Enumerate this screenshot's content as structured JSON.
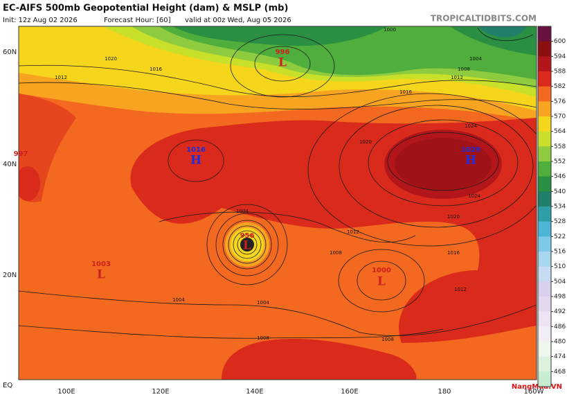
{
  "header": {
    "title": "EC-AIFS 500mb Geopotential Height (dam) & MSLP (mb)",
    "init": "Init: 12z Aug 02 2026",
    "forecast_hour": "Forecast Hour: [60]",
    "valid": "valid at 00z Wed, Aug 05 2026",
    "site": "TROPICALTIDBITS.COM"
  },
  "map": {
    "lat_labels": [
      "60N",
      "40N",
      "20N",
      "EQ"
    ],
    "lon_labels": [
      "100E",
      "120E",
      "140E",
      "160E",
      "180",
      "160W"
    ],
    "pressure_centers": [
      {
        "symbol": "H",
        "value": 1016
      },
      {
        "symbol": "H",
        "value": 1029
      },
      {
        "symbol": "L",
        "value": 996
      },
      {
        "symbol": "L",
        "value": 956
      },
      {
        "symbol": "L",
        "value": 1000
      },
      {
        "symbol": "L",
        "value": 1003
      },
      {
        "value": 997
      }
    ],
    "isobar_labels": [
      1020,
      1016,
      1012,
      1000,
      1004,
      1008,
      1012,
      1016,
      1020,
      1024,
      1024,
      1020,
      1016,
      1012,
      1008,
      1004,
      1008,
      1004,
      1012,
      1008,
      1004
    ]
  },
  "colorbar": {
    "levels": [
      600,
      594,
      588,
      582,
      576,
      570,
      564,
      558,
      552,
      546,
      540,
      534,
      528,
      522,
      516,
      510,
      504,
      498,
      492,
      486,
      480,
      474,
      468
    ],
    "colors": [
      "#6a1040",
      "#8c0f12",
      "#b3161a",
      "#da2a1c",
      "#f3691f",
      "#f8a421",
      "#f6d51d",
      "#c9e02b",
      "#8fcb3e",
      "#4fae3c",
      "#2b8f43",
      "#21806a",
      "#2e9fa6",
      "#4cb4d5",
      "#7fc9e8",
      "#a7d7ef",
      "#c6dcf2",
      "#d8d0ec",
      "#e4d8ef",
      "#eee3f2",
      "#f3eef5",
      "#eef6ee",
      "#dcf2dc",
      "#c8ecd0"
    ]
  },
  "watermark": "NangMua.VN"
}
